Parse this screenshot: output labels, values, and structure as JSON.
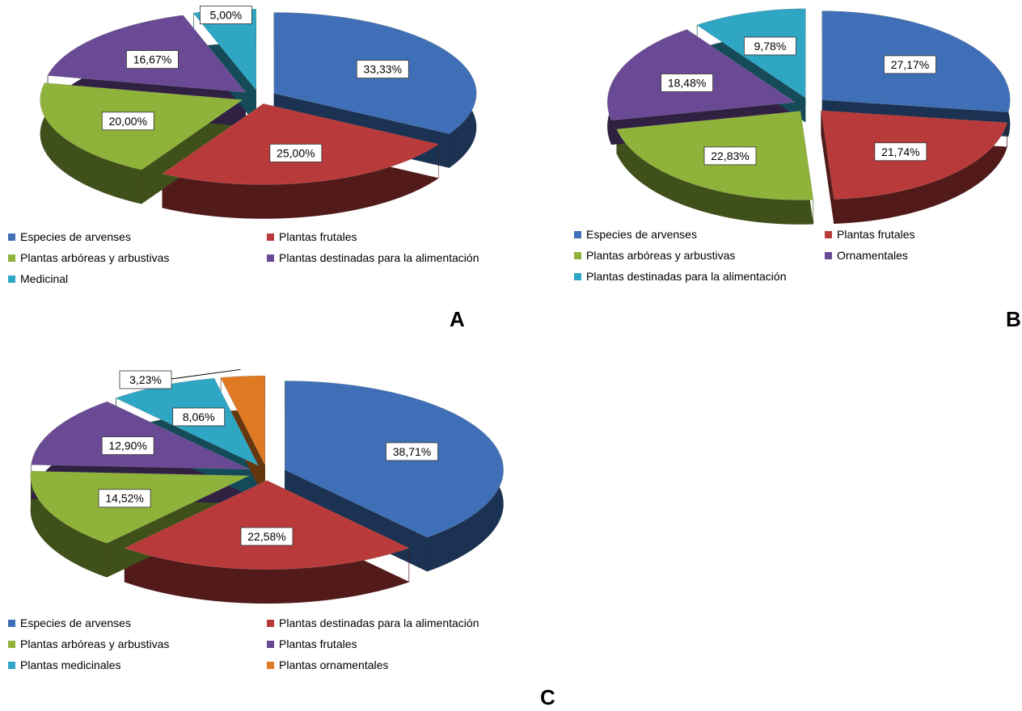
{
  "chart_data": [
    {
      "type": "pie",
      "panel_letter": "A",
      "slices": [
        {
          "name": "Especies de arvenses",
          "value": 33.33,
          "label": "33,33%",
          "color": "#3f6fb6"
        },
        {
          "name": "Plantas frutales",
          "value": 25.0,
          "label": "25,00%",
          "color": "#b93a3a"
        },
        {
          "name": "Plantas arbóreas y arbustivas",
          "value": 20.0,
          "label": "20,00%",
          "color": "#8fb23a"
        },
        {
          "name": "Plantas destinadas para la alimentación",
          "value": 16.67,
          "label": "16,67%",
          "color": "#6a4a94"
        },
        {
          "name": "Medicinal",
          "value": 5.0,
          "label": "5,00%",
          "color": "#2fa6c4"
        }
      ],
      "legend": [
        "Especies de arvenses",
        "Plantas frutales",
        "Plantas arbóreas y arbustivas",
        "Plantas destinadas para la alimentación",
        "Medicinal"
      ]
    },
    {
      "type": "pie",
      "panel_letter": "B",
      "slices": [
        {
          "name": "Especies de arvenses",
          "value": 27.17,
          "label": "27,17%",
          "color": "#3f6fb6"
        },
        {
          "name": "Plantas frutales",
          "value": 21.74,
          "label": "21,74%",
          "color": "#b93a3a"
        },
        {
          "name": "Plantas arbóreas y arbustivas",
          "value": 22.83,
          "label": "22,83%",
          "color": "#8fb23a"
        },
        {
          "name": "Ornamentales",
          "value": 18.48,
          "label": "18,48%",
          "color": "#6a4a94"
        },
        {
          "name": "Plantas destinadas para la alimentación",
          "value": 9.78,
          "label": "9,78%",
          "color": "#2fa6c4"
        }
      ],
      "legend": [
        "Especies de arvenses",
        "Plantas frutales",
        "Plantas arbóreas y arbustivas",
        "Ornamentales",
        "Plantas destinadas para la alimentación"
      ]
    },
    {
      "type": "pie",
      "panel_letter": "C",
      "slices": [
        {
          "name": "Especies de arvenses",
          "value": 38.71,
          "label": "38,71%",
          "color": "#3f6fb6"
        },
        {
          "name": "Plantas destinadas para la alimentación",
          "value": 22.58,
          "label": "22,58%",
          "color": "#b93a3a"
        },
        {
          "name": "Plantas arbóreas y arbustivas",
          "value": 14.52,
          "label": "14,52%",
          "color": "#8fb23a"
        },
        {
          "name": "Plantas frutales",
          "value": 12.9,
          "label": "12,90%",
          "color": "#6a4a94"
        },
        {
          "name": "Plantas medicinales",
          "value": 8.06,
          "label": "8,06%",
          "color": "#2fa6c4"
        },
        {
          "name": "Plantas ornamentales",
          "value": 3.23,
          "label": "3,23%",
          "color": "#e07a22"
        }
      ],
      "legend": [
        "Especies de arvenses",
        "Plantas destinadas para la alimentación",
        "Plantas arbóreas y arbustivas",
        "Plantas frutales",
        "Plantas medicinales",
        "Plantas ornamentales"
      ]
    }
  ]
}
